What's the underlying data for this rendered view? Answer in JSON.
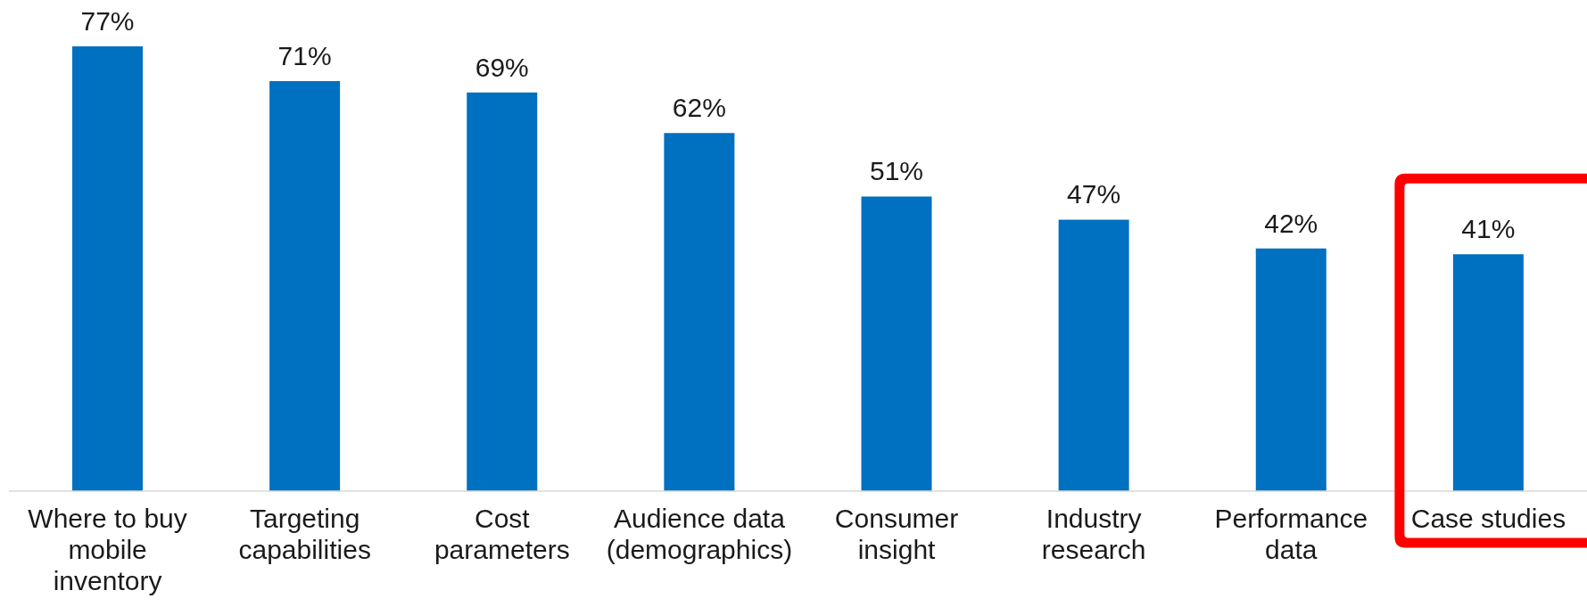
{
  "chart_data": {
    "type": "bar",
    "categories": [
      "Where to buy mobile inventory",
      "Targeting capabilities",
      "Cost parameters",
      "Audience data (demographics)",
      "Consumer insight",
      "Industry research",
      "Performance data",
      "Case studies"
    ],
    "values": [
      77,
      71,
      69,
      62,
      51,
      47,
      42,
      41
    ],
    "value_labels": [
      "77%",
      "71%",
      "69%",
      "62%",
      "51%",
      "47%",
      "42%",
      "41%"
    ],
    "color": "#0070c0"
  }
}
